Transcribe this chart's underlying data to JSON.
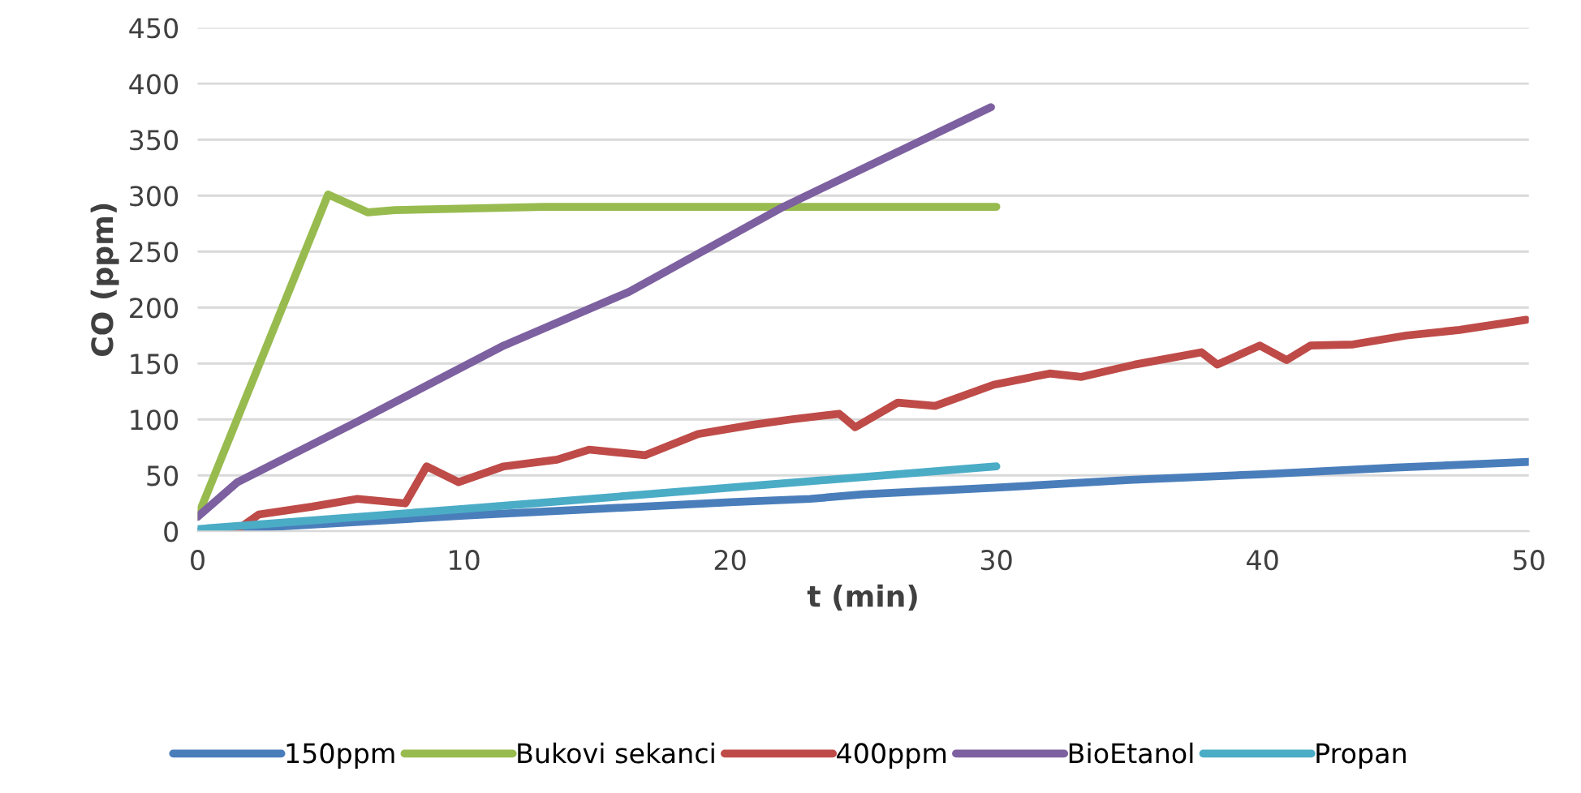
{
  "chart_data": {
    "type": "line",
    "xlabel": "t (min)",
    "ylabel": "CO (ppm)",
    "xlim": [
      0,
      50
    ],
    "xticks": [
      0,
      10,
      20,
      30,
      40,
      50
    ],
    "ylim": [
      0,
      450
    ],
    "yticks": [
      0,
      50,
      100,
      150,
      200,
      250,
      300,
      350,
      400,
      450
    ],
    "grid": "y",
    "legend": "bottom",
    "marker": "none",
    "line_style": "solid",
    "series": [
      {
        "name": "150ppm",
        "color": "#4a7ebb",
        "x": [
          0,
          5,
          10,
          15,
          20,
          23,
          25,
          30,
          35,
          40,
          45,
          50
        ],
        "values": [
          0,
          7,
          14,
          20,
          26,
          29,
          33,
          39,
          46,
          51,
          57,
          62
        ]
      },
      {
        "name": "Bukovi sekanci",
        "color": "#98bb4f",
        "x": [
          0,
          4.9,
          6.4,
          7.4,
          13,
          20,
          30
        ],
        "values": [
          13,
          301,
          285,
          287,
          290,
          290,
          290
        ]
      },
      {
        "name": "400ppm",
        "color": "#be4b48",
        "x": [
          1.4,
          2.3,
          4.3,
          6,
          7.8,
          8.6,
          9.8,
          11.5,
          13.5,
          14.7,
          16.8,
          18.8,
          20.8,
          22.3,
          23,
          24.1,
          24.7,
          26.3,
          27.7,
          29.9,
          32,
          33.2,
          35.2,
          37.7,
          38.3,
          39.9,
          40.9,
          41.8,
          43.4,
          45.4,
          47.4,
          49.9
        ],
        "values": [
          0,
          15,
          22,
          29,
          25,
          58,
          44,
          58,
          64,
          73,
          68,
          87,
          95,
          100,
          102,
          105,
          93,
          115,
          112,
          131,
          141,
          138,
          149,
          160,
          149,
          166,
          153,
          166,
          167,
          175,
          180,
          189
        ]
      },
      {
        "name": "BioEtanol",
        "color": "#7d60a0",
        "x": [
          0,
          1.5,
          6,
          11.5,
          16.2,
          22,
          29.8
        ],
        "values": [
          13,
          44,
          98,
          166,
          214,
          290,
          379
        ]
      },
      {
        "name": "Propan",
        "color": "#4bacc6",
        "x": [
          0,
          10,
          20,
          30
        ],
        "values": [
          2,
          20,
          39,
          58
        ]
      }
    ]
  }
}
